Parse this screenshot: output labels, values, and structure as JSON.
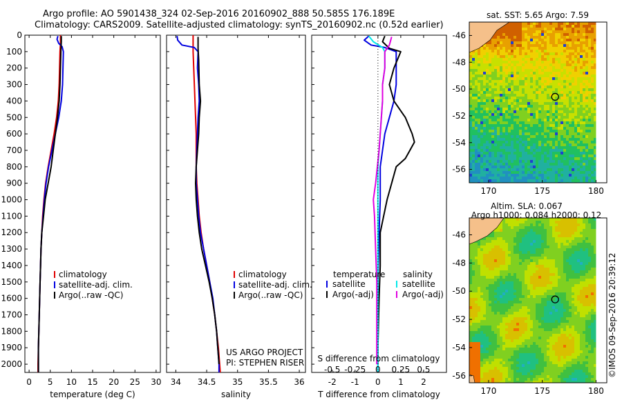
{
  "header": {
    "line1": "Argo profile: AO 5901438_324 02-Sep-2016 20160902_888 50.585S 176.189E",
    "line2": "Climatology: CARS2009. Satellite-adjusted climatology: synTS_20160902.nc (0.52d earlier)"
  },
  "watermark": "©IMOS 09-Sep-2016 20:39:12",
  "colors": {
    "climatology": "#e00000",
    "satellite": "#0000e0",
    "argo": "#000000",
    "cyan": "#00e8e8",
    "magenta": "#e000e0",
    "land": "#f5c08a"
  },
  "chart_data": [
    {
      "type": "line",
      "panel": "temperature",
      "xlabel": "temperature (deg C)",
      "ylabel": "",
      "xlim": [
        -1,
        31
      ],
      "ylim": [
        2050,
        0
      ],
      "xticks": [
        "0",
        "5",
        "10",
        "15",
        "20",
        "25",
        "30"
      ],
      "yticks": [
        "0",
        "100",
        "200",
        "300",
        "400",
        "500",
        "600",
        "700",
        "800",
        "900",
        "1000",
        "1100",
        "1200",
        "1300",
        "1400",
        "1500",
        "1600",
        "1700",
        "1800",
        "1900",
        "2000"
      ],
      "legend": [
        "climatology",
        "satellite-adj. clim.",
        "Argo(..raw -QC)"
      ],
      "series": [
        {
          "name": "climatology",
          "color": "#e00000",
          "points": [
            [
              7.4,
              0
            ],
            [
              7.4,
              50
            ],
            [
              7.3,
              100
            ],
            [
              7.2,
              200
            ],
            [
              7.1,
              300
            ],
            [
              6.9,
              400
            ],
            [
              6.5,
              500
            ],
            [
              5.9,
              600
            ],
            [
              5.2,
              700
            ],
            [
              4.5,
              800
            ],
            [
              3.9,
              900
            ],
            [
              3.5,
              1000
            ],
            [
              3.2,
              1100
            ],
            [
              3.0,
              1200
            ],
            [
              2.8,
              1300
            ],
            [
              2.7,
              1400
            ],
            [
              2.6,
              1500
            ],
            [
              2.5,
              1600
            ],
            [
              2.4,
              1700
            ],
            [
              2.3,
              1800
            ],
            [
              2.2,
              1900
            ],
            [
              2.1,
              2000
            ],
            [
              2.1,
              2050
            ]
          ]
        },
        {
          "name": "satellite-adj. clim.",
          "color": "#0000e0",
          "points": [
            [
              6.8,
              5
            ],
            [
              6.6,
              25
            ],
            [
              7.0,
              50
            ],
            [
              7.8,
              70
            ],
            [
              8.1,
              100
            ],
            [
              8.0,
              200
            ],
            [
              7.9,
              300
            ],
            [
              7.6,
              400
            ],
            [
              7.0,
              500
            ],
            [
              6.2,
              600
            ],
            [
              5.4,
              700
            ],
            [
              4.6,
              800
            ],
            [
              4.0,
              900
            ],
            [
              3.6,
              1000
            ],
            [
              3.3,
              1100
            ],
            [
              3.0,
              1200
            ],
            [
              2.8,
              1300
            ],
            [
              2.7,
              1400
            ],
            [
              2.6,
              1500
            ],
            [
              2.5,
              1600
            ],
            [
              2.4,
              1700
            ],
            [
              2.3,
              1800
            ],
            [
              2.2,
              1900
            ],
            [
              2.2,
              2000
            ],
            [
              2.2,
              2050
            ]
          ]
        },
        {
          "name": "Argo(..raw -QC)",
          "color": "#000000",
          "points": [
            [
              7.6,
              5
            ],
            [
              7.6,
              40
            ],
            [
              7.5,
              100
            ],
            [
              7.4,
              200
            ],
            [
              7.3,
              300
            ],
            [
              7.1,
              400
            ],
            [
              6.7,
              500
            ],
            [
              6.2,
              600
            ],
            [
              5.7,
              700
            ],
            [
              5.2,
              800
            ],
            [
              4.5,
              900
            ],
            [
              3.8,
              1000
            ],
            [
              3.4,
              1100
            ],
            [
              3.0,
              1200
            ],
            [
              2.8,
              1300
            ],
            [
              2.7,
              1400
            ],
            [
              2.6,
              1500
            ],
            [
              2.5,
              1600
            ],
            [
              2.4,
              1700
            ],
            [
              2.3,
              1800
            ],
            [
              2.2,
              1900
            ],
            [
              2.2,
              2000
            ],
            [
              2.2,
              2050
            ]
          ]
        }
      ]
    },
    {
      "type": "line",
      "panel": "salinity",
      "xlabel": "salinity",
      "ylabel": "",
      "xlim": [
        33.85,
        36.1
      ],
      "ylim": [
        2050,
        0
      ],
      "xticks": [
        "34",
        "34.5",
        "35",
        "35.5",
        "36"
      ],
      "legend": [
        "climatology",
        "satellite-adj. clim.",
        "Argo(..raw -QC)"
      ],
      "annotation": [
        "US ARGO PROJECT",
        "PI: STEPHEN RISER"
      ],
      "series": [
        {
          "name": "climatology",
          "color": "#e00000",
          "points": [
            [
              34.28,
              0
            ],
            [
              34.28,
              50
            ],
            [
              34.28,
              100
            ],
            [
              34.29,
              200
            ],
            [
              34.3,
              300
            ],
            [
              34.31,
              400
            ],
            [
              34.32,
              500
            ],
            [
              34.33,
              600
            ],
            [
              34.33,
              700
            ],
            [
              34.33,
              800
            ],
            [
              34.34,
              900
            ],
            [
              34.36,
              1000
            ],
            [
              34.38,
              1100
            ],
            [
              34.41,
              1200
            ],
            [
              34.45,
              1300
            ],
            [
              34.5,
              1400
            ],
            [
              34.55,
              1500
            ],
            [
              34.59,
              1600
            ],
            [
              34.63,
              1700
            ],
            [
              34.66,
              1800
            ],
            [
              34.69,
              1900
            ],
            [
              34.71,
              2000
            ],
            [
              34.72,
              2050
            ]
          ]
        },
        {
          "name": "satellite-adj. clim.",
          "color": "#0000e0",
          "points": [
            [
              34.02,
              5
            ],
            [
              34.03,
              30
            ],
            [
              34.1,
              60
            ],
            [
              34.3,
              75
            ],
            [
              34.36,
              100
            ],
            [
              34.35,
              200
            ],
            [
              34.37,
              300
            ],
            [
              34.38,
              400
            ],
            [
              34.36,
              500
            ],
            [
              34.35,
              600
            ],
            [
              34.34,
              700
            ],
            [
              34.33,
              800
            ],
            [
              34.33,
              900
            ],
            [
              34.35,
              1000
            ],
            [
              34.37,
              1100
            ],
            [
              34.4,
              1200
            ],
            [
              34.45,
              1300
            ],
            [
              34.5,
              1400
            ],
            [
              34.55,
              1500
            ],
            [
              34.6,
              1600
            ],
            [
              34.63,
              1700
            ],
            [
              34.66,
              1800
            ],
            [
              34.68,
              1900
            ],
            [
              34.7,
              2000
            ],
            [
              34.7,
              2050
            ]
          ]
        },
        {
          "name": "Argo(..raw -QC)",
          "color": "#000000",
          "points": [
            [
              34.36,
              10
            ],
            [
              34.36,
              80
            ],
            [
              34.37,
              150
            ],
            [
              34.38,
              300
            ],
            [
              34.4,
              400
            ],
            [
              34.38,
              500
            ],
            [
              34.37,
              600
            ],
            [
              34.35,
              700
            ],
            [
              34.33,
              800
            ],
            [
              34.32,
              900
            ],
            [
              34.33,
              1000
            ],
            [
              34.35,
              1100
            ],
            [
              34.38,
              1200
            ],
            [
              34.42,
              1300
            ],
            [
              34.48,
              1400
            ],
            [
              34.54,
              1500
            ],
            [
              34.59,
              1600
            ],
            [
              34.63,
              1700
            ],
            [
              34.66,
              1800
            ],
            [
              34.68,
              1900
            ],
            [
              34.7,
              2000
            ]
          ]
        }
      ]
    },
    {
      "type": "line",
      "panel": "difference",
      "xlabel": "T difference from climatology",
      "xlabel2": "S difference from climatology",
      "xlim": [
        -2.9,
        3.0
      ],
      "ylim": [
        2050,
        0
      ],
      "xticks": [
        "-2",
        "-1",
        "0",
        "1",
        "2"
      ],
      "xticks_s": [
        "-0.5",
        "-0.25",
        "0",
        "0.25",
        "0.5"
      ],
      "legend_headers": [
        "temperature",
        "salinity"
      ],
      "legend": [
        {
          "name": "satellite",
          "group": "temperature",
          "color": "#0000e0"
        },
        {
          "name": "Argo(-adj)",
          "group": "temperature",
          "color": "#000000"
        },
        {
          "name": "satellite",
          "group": "salinity",
          "color": "#00e8e8"
        },
        {
          "name": "Argo(-adj)",
          "group": "salinity",
          "color": "#e000e0"
        }
      ],
      "series": [
        {
          "name": "satellite",
          "group": "temperature",
          "color": "#0000e0",
          "points": [
            [
              -0.4,
              5
            ],
            [
              -0.6,
              30
            ],
            [
              -0.3,
              60
            ],
            [
              0.3,
              75
            ],
            [
              0.8,
              100
            ],
            [
              0.8,
              200
            ],
            [
              0.8,
              300
            ],
            [
              0.7,
              400
            ],
            [
              0.5,
              500
            ],
            [
              0.3,
              600
            ],
            [
              0.2,
              700
            ],
            [
              0.1,
              800
            ],
            [
              0.1,
              900
            ],
            [
              0.1,
              1000
            ],
            [
              0.05,
              1200
            ],
            [
              0.0,
              1500
            ],
            [
              0.0,
              2050
            ]
          ]
        },
        {
          "name": "Argo(-adj)",
          "group": "temperature",
          "color": "#000000",
          "points": [
            [
              0.3,
              5
            ],
            [
              0.2,
              40
            ],
            [
              0.5,
              80
            ],
            [
              1.0,
              100
            ],
            [
              0.7,
              200
            ],
            [
              0.5,
              300
            ],
            [
              0.7,
              400
            ],
            [
              1.2,
              500
            ],
            [
              1.5,
              600
            ],
            [
              1.6,
              650
            ],
            [
              1.4,
              700
            ],
            [
              1.2,
              750
            ],
            [
              0.8,
              800
            ],
            [
              0.6,
              900
            ],
            [
              0.4,
              1000
            ],
            [
              0.25,
              1100
            ],
            [
              0.1,
              1200
            ],
            [
              0.1,
              1400
            ],
            [
              0.05,
              1600
            ],
            [
              0.0,
              1900
            ],
            [
              0.0,
              2000
            ]
          ]
        },
        {
          "name": "satellite",
          "group": "salinity",
          "color": "#00e8e8",
          "points": [
            [
              -0.4,
              5
            ],
            [
              -0.2,
              40
            ],
            [
              0.2,
              75
            ],
            [
              0.3,
              100
            ],
            [
              0.3,
              200
            ],
            [
              0.2,
              300
            ],
            [
              0.2,
              400
            ],
            [
              0.15,
              500
            ],
            [
              0.1,
              600
            ],
            [
              0.05,
              700
            ],
            [
              0.0,
              800
            ],
            [
              0.0,
              1000
            ],
            [
              0.0,
              1200
            ],
            [
              0.0,
              1500
            ],
            [
              0.0,
              2050
            ]
          ]
        },
        {
          "name": "Argo(-adj)",
          "group": "salinity",
          "color": "#e000e0",
          "points": [
            [
              0.6,
              10
            ],
            [
              0.5,
              60
            ],
            [
              0.3,
              100
            ],
            [
              0.3,
              200
            ],
            [
              0.2,
              300
            ],
            [
              0.2,
              400
            ],
            [
              0.15,
              500
            ],
            [
              0.05,
              700
            ],
            [
              -0.1,
              900
            ],
            [
              -0.2,
              1000
            ],
            [
              -0.15,
              1100
            ],
            [
              -0.1,
              1300
            ],
            [
              -0.05,
              1500
            ],
            [
              -0.05,
              1800
            ],
            [
              -0.05,
              2000
            ]
          ]
        }
      ]
    },
    {
      "type": "heatmap",
      "panel": "sst-map",
      "title": "sat. SST: 5.65 Argo: 7.59",
      "xlim": [
        168.2,
        181.0
      ],
      "ylim": [
        -57.0,
        -45.0
      ],
      "xticks": [
        "170",
        "175",
        "180"
      ],
      "yticks": [
        "-46",
        "-48",
        "-50",
        "-52",
        "-54",
        "-56"
      ],
      "argo_position": {
        "lon": 176.189,
        "lat": -50.585
      },
      "palette": [
        "#d06000",
        "#e8a000",
        "#f0d000",
        "#c8e000",
        "#80d020",
        "#20c060",
        "#20b0a0",
        "#2090c0",
        "#2040d0"
      ]
    },
    {
      "type": "heatmap",
      "panel": "sla-map",
      "title": [
        "Altim. SLA: 0.067",
        "Argo h1000: 0.084 h2000: 0.12"
      ],
      "xlim": [
        168.2,
        181.0
      ],
      "ylim": [
        -56.5,
        -44.8
      ],
      "xticks": [
        "170",
        "175",
        "180"
      ],
      "yticks": [
        "-46",
        "-48",
        "-50",
        "-52",
        "-54",
        "-56"
      ],
      "argo_position": {
        "lon": 176.189,
        "lat": -50.585
      },
      "palette": [
        "#f07000",
        "#d8c000",
        "#c0e000",
        "#80d020",
        "#40c040",
        "#20c080",
        "#20b0c0",
        "#2090e0"
      ]
    }
  ]
}
